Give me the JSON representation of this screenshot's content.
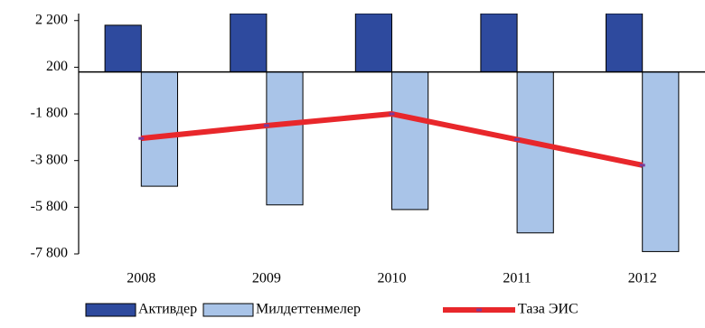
{
  "chart_data": {
    "type": "bar-line",
    "categories": [
      "2008",
      "2009",
      "2010",
      "2011",
      "2012"
    ],
    "series": [
      {
        "name": "Активдер",
        "type": "bar",
        "color": "#2e4a9e",
        "values": [
          2000,
          2500,
          2500,
          2500,
          2500
        ]
      },
      {
        "name": "Милдеттенмелер",
        "type": "bar",
        "color": "#a9c4e8",
        "values": [
          -4900,
          -5700,
          -5900,
          -6900,
          -7700
        ]
      },
      {
        "name": "Таза ЭИС",
        "type": "line",
        "color": "#e8272b",
        "marker_color": "#7a3a9a",
        "values": [
          -2850,
          -2300,
          -1800,
          -2900,
          -4000
        ]
      }
    ],
    "ylim": [
      -7800,
      2500
    ],
    "yticks": [
      {
        "value": 2200,
        "label": "2 200"
      },
      200,
      {
        "value": -1800,
        "label": "-1 800"
      },
      {
        "value": -3800,
        "label": "-3 800"
      },
      {
        "value": -5800,
        "label": "-5 800"
      },
      {
        "value": -7800,
        "label": "-7 800"
      }
    ],
    "legend": "bottom"
  }
}
